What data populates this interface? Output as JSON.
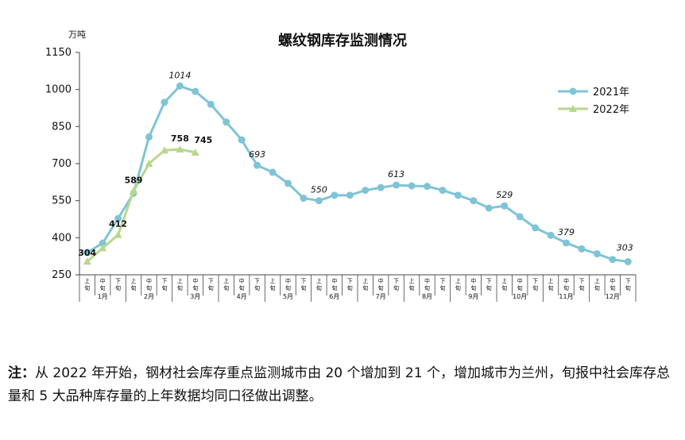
{
  "chart_data": {
    "type": "line",
    "title": "螺纹钢库存监测情况",
    "unit_label": "万吨",
    "ylim": [
      250,
      1150
    ],
    "yticks": [
      250,
      400,
      550,
      700,
      850,
      1000,
      1150
    ],
    "ticks_per_month": [
      "上旬",
      "中旬",
      "下旬"
    ],
    "month_labels": [
      "1月",
      "2月",
      "3月",
      "4月",
      "5月",
      "6月",
      "7月",
      "8月",
      "9月",
      "10月",
      "11月",
      "12月"
    ],
    "legend_position": "top-right",
    "series": [
      {
        "name": "2021年",
        "color": "#7fc4d6",
        "marker": "circle",
        "values": [
          340,
          378,
          478,
          580,
          808,
          948,
          1014,
          992,
          940,
          868,
          796,
          693,
          665,
          620,
          560,
          550,
          572,
          572,
          592,
          603,
          613,
          610,
          608,
          592,
          572,
          550,
          520,
          529,
          485,
          440,
          410,
          379,
          355,
          335,
          312,
          303
        ],
        "point_labels": [
          {
            "index": 6,
            "text": "1014"
          },
          {
            "index": 11,
            "text": "693"
          },
          {
            "index": 15,
            "text": "550"
          },
          {
            "index": 20,
            "text": "613"
          },
          {
            "index": 27,
            "text": "529"
          },
          {
            "index": 31,
            "text": "379"
          },
          {
            "index": 35,
            "text": "303"
          }
        ]
      },
      {
        "name": "2022年",
        "color": "#b8d78c",
        "marker": "triangle",
        "values": [
          304,
          358,
          412,
          589,
          700,
          754,
          758,
          745
        ],
        "point_labels": [
          {
            "index": 0,
            "text": "304"
          },
          {
            "index": 2,
            "text": "412"
          },
          {
            "index": 3,
            "text": "589"
          },
          {
            "index": 6,
            "text": "758"
          },
          {
            "index": 7,
            "text": "745"
          }
        ]
      }
    ]
  },
  "note": {
    "prefix": "注：",
    "text": "从 2022 年开始，钢材社会库存重点监测城市由 20 个增加到 21 个，增加城市为兰州，旬报中社会库存总量和 5 大品种库存量的上年数据均同口径做出调整。"
  }
}
